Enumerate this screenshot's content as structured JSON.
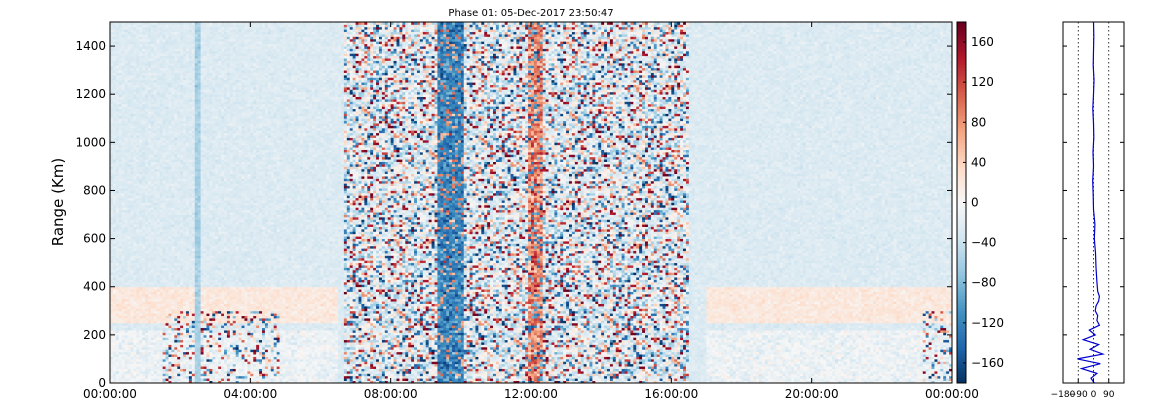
{
  "chart_data": [
    {
      "type": "heatmap",
      "title": "Phase 01: 05-Dec-2017 23:50:47",
      "xlabel": "",
      "ylabel": "Range (Km)",
      "xlim": [
        "00:00:00",
        "24:00:00"
      ],
      "ylim": [
        0,
        1500
      ],
      "x_ticks": [
        "00:00:00",
        "04:00:00",
        "08:00:00",
        "12:00:00",
        "16:00:00",
        "20:00:00",
        "00:00:00"
      ],
      "y_ticks": [
        0,
        200,
        400,
        600,
        800,
        1000,
        1200,
        1400
      ],
      "colorbar": {
        "colormap": "RdBu_r",
        "range": [
          -180,
          180
        ],
        "ticks": [
          -160,
          -120,
          -80,
          -40,
          0,
          40,
          80,
          120,
          160
        ],
        "colors": {
          "min": "#08306b",
          "mid": "#f7f7f7",
          "max": "#67001f"
        }
      },
      "grid": {
        "time_bins": 288,
        "range_bins": 150
      },
      "features": {
        "noisy_band_hours": [
          6.7,
          16.5
        ],
        "blue_stripe_hours": [
          9.3,
          10.1
        ],
        "red_stripe_hours": [
          11.9,
          12.3
        ],
        "low_range_pink_layer_km": [
          250,
          400
        ],
        "low_range_noise_hours": [
          1.5,
          4.8
        ],
        "late_low_range_noise_hours": [
          23.2,
          24
        ]
      }
    },
    {
      "type": "line",
      "title": "",
      "xlabel": "",
      "ylabel": "",
      "xlim": [
        -180,
        180
      ],
      "ylim": [
        0,
        1500
      ],
      "x_ticks": [
        "−180",
        "−90",
        "0",
        "90"
      ],
      "reference_lines_x": [
        -90,
        0,
        90
      ],
      "series": [
        {
          "color": "#0000cc",
          "y": [
            0,
            20,
            40,
            60,
            80,
            100,
            120,
            140,
            160,
            180,
            200,
            220,
            240,
            260,
            280,
            300,
            320,
            340,
            360,
            380,
            420,
            480,
            540,
            600,
            660,
            720,
            780,
            840,
            900,
            960,
            1020,
            1080,
            1140,
            1200,
            1260,
            1320,
            1380,
            1440,
            1500
          ],
          "x": [
            5,
            -15,
            20,
            -70,
            40,
            -95,
            55,
            -20,
            30,
            -60,
            10,
            -25,
            35,
            20,
            25,
            10,
            15,
            30,
            35,
            25,
            20,
            15,
            12,
            5,
            8,
            0,
            -2,
            -5,
            0,
            -3,
            2,
            0,
            -4,
            0,
            3,
            -2,
            0,
            2,
            0
          ]
        }
      ]
    }
  ]
}
